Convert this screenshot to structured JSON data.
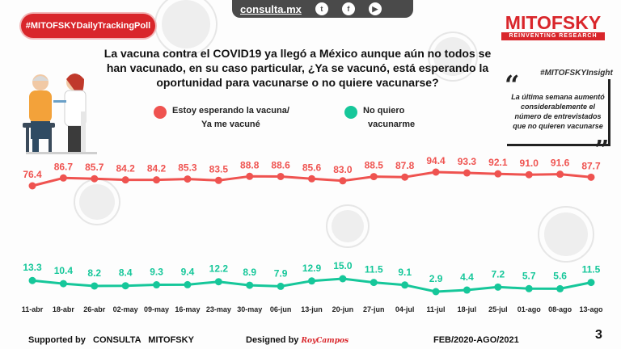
{
  "badge": "#MITOFSKYDailyTrackingPoll",
  "topbar": {
    "site": "consulta.mx",
    "icons": [
      "twitter-icon",
      "facebook-icon",
      "youtube-icon"
    ]
  },
  "logo": {
    "name": "MITOFSKY",
    "tagline": "REINVENTING RESEARCH"
  },
  "question": "La vacuna contra el COVID19 ya llegó a México aunque aún no todos se han vacunado, en su caso particular, ¿Ya se vacunó, está esperando la oportunidad para vacunarse o no quiere vacunarse?",
  "insight": {
    "tag": "#MITOFSKYInsight",
    "text": "La última semana aumentó considerablemente el número de entrevistados que no quieren vacunarse"
  },
  "colors": {
    "red": "#ef5350",
    "teal": "#16c79a",
    "accent": "#d9262b"
  },
  "chart_data": {
    "type": "line",
    "categories": [
      "11-abr",
      "18-abr",
      "26-abr",
      "02-may",
      "09-may",
      "16-may",
      "23-may",
      "30-may",
      "06-jun",
      "13-jun",
      "20-jun",
      "27-jun",
      "04-jul",
      "11-jul",
      "18-jul",
      "25-jul",
      "01-ago",
      "08-ago",
      "13-ago"
    ],
    "series": [
      {
        "name": "Estoy esperando la vacuna/ Ya me vacuné",
        "color": "#ef5350",
        "values": [
          76.4,
          86.7,
          85.7,
          84.2,
          84.2,
          85.3,
          83.5,
          88.8,
          88.6,
          85.6,
          83.0,
          88.5,
          87.8,
          94.4,
          93.3,
          92.1,
          91.0,
          91.6,
          87.7
        ]
      },
      {
        "name": "No quiero vacunarme",
        "color": "#16c79a",
        "values": [
          13.3,
          10.4,
          8.2,
          8.4,
          9.3,
          9.4,
          12.2,
          8.9,
          7.9,
          12.9,
          15.0,
          11.5,
          9.1,
          2.9,
          4.4,
          7.2,
          5.7,
          5.6,
          11.5
        ]
      }
    ],
    "legend_position": "top"
  },
  "legend": {
    "red_line1": "Estoy esperando la vacuna/",
    "red_line2": "Ya me vacuné",
    "teal_line1": "No quiero",
    "teal_line2": "vacunarme"
  },
  "footer": {
    "supported": "Supported by   CONSULTA   MITOFSKY",
    "designed": "Designed by",
    "designer": "RoyCampos",
    "period": "FEB/2020-AGO/2021",
    "page": "3"
  }
}
